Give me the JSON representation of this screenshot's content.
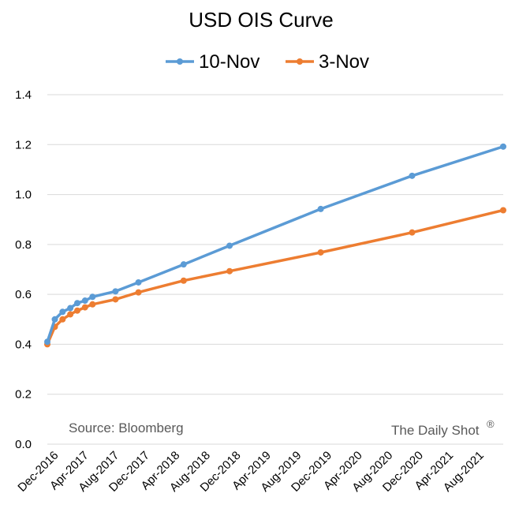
{
  "chart_data": {
    "type": "line",
    "title": "USD OIS Curve",
    "xlabel": "",
    "ylabel": "",
    "ylim": [
      0,
      1.4
    ],
    "yticks": [
      "0.0",
      "0.2",
      "0.4",
      "0.6",
      "0.8",
      "1.0",
      "1.2",
      "1.4"
    ],
    "xlim": [
      "2016-11-10",
      "2021-11-10"
    ],
    "xticks": [
      "Dec-2016",
      "Apr-2017",
      "Aug-2017",
      "Dec-2017",
      "Apr-2018",
      "Aug-2018",
      "Dec-2018",
      "Apr-2019",
      "Aug-2019",
      "Dec-2019",
      "Apr-2020",
      "Aug-2020",
      "Dec-2020",
      "Apr-2021",
      "Aug-2021"
    ],
    "grid": true,
    "legend_position": "top",
    "series": [
      {
        "name": "10-Nov",
        "color": "#5B9BD5",
        "x": [
          "2016-11-10",
          "2016-12-10",
          "2017-01-10",
          "2017-02-10",
          "2017-03-10",
          "2017-04-10",
          "2017-05-10",
          "2017-08-10",
          "2017-11-10",
          "2018-05-10",
          "2018-11-10",
          "2019-11-10",
          "2020-11-10",
          "2021-11-10"
        ],
        "y": [
          0.41,
          0.5,
          0.53,
          0.545,
          0.565,
          0.575,
          0.59,
          0.612,
          0.648,
          0.72,
          0.795,
          0.942,
          1.075,
          1.192
        ]
      },
      {
        "name": "3-Nov",
        "color": "#ED7D31",
        "x": [
          "2016-11-10",
          "2016-12-10",
          "2017-01-10",
          "2017-02-10",
          "2017-03-10",
          "2017-04-10",
          "2017-05-10",
          "2017-08-10",
          "2017-11-10",
          "2018-05-10",
          "2018-11-10",
          "2019-11-10",
          "2020-11-10",
          "2021-11-10"
        ],
        "y": [
          0.4,
          0.47,
          0.5,
          0.52,
          0.535,
          0.548,
          0.56,
          0.58,
          0.608,
          0.655,
          0.693,
          0.768,
          0.848,
          0.937
        ]
      }
    ]
  },
  "annotations": {
    "source": "Source: Bloomberg",
    "brand": "The Daily Shot",
    "brand_mark": "®"
  }
}
